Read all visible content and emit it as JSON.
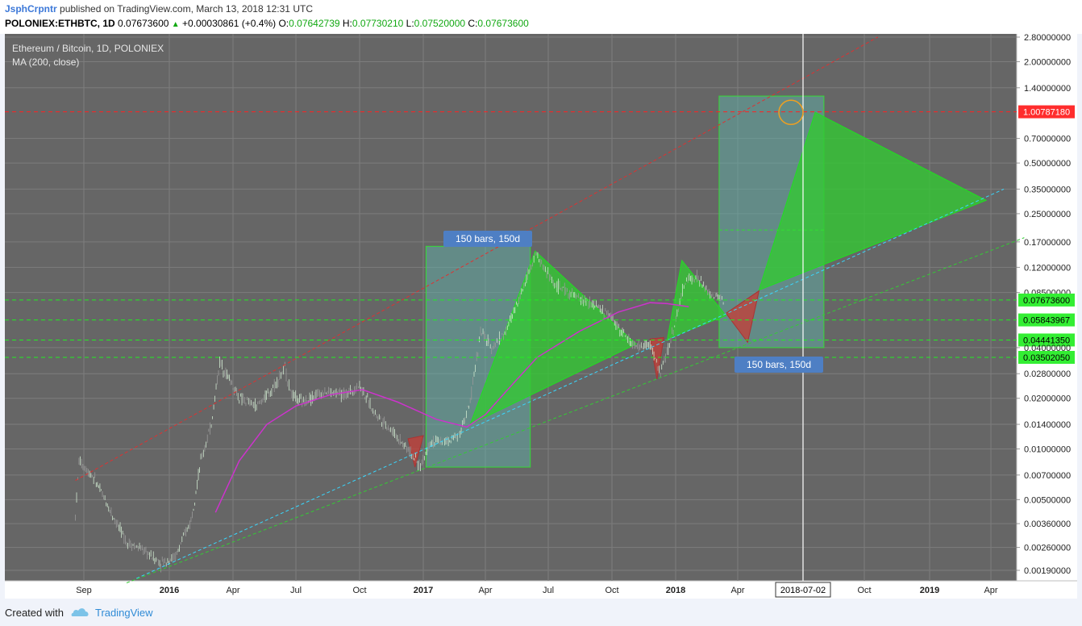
{
  "header": {
    "author": "JsphCrpntr",
    "published": "published on TradingView.com, March 13, 2018 12:31 UTC",
    "symbol": "POLONIEX:ETHBTC, 1D",
    "price": "0.07673600",
    "change": "+0.00030861 (+0.4%)",
    "open_label": "O:",
    "open": "0.07642739",
    "high_label": "H:",
    "high": "0.07730210",
    "low_label": "L:",
    "low": "0.07520000",
    "close_label": "C:",
    "close": "0.07673600"
  },
  "legend": {
    "title": "Ethereum / Bitcoin, 1D, POLONIEX",
    "indicator": "MA (200, close)"
  },
  "annotations": {
    "label_top": "150 bars, 150d",
    "label_bottom": "150 bars, 150d",
    "crosshair_date": "2018-07-02"
  },
  "footer": {
    "created_with": "Created with",
    "brand": "TradingView"
  },
  "colors": {
    "up": "#12a812",
    "chart_bg": "#666666",
    "ma_line": "#cc33cc",
    "red_level": "#ff2222",
    "green_level": "#22ee22",
    "label_bg": "#4e7fc4"
  },
  "chart_data": {
    "type": "candlestick",
    "scale": "log",
    "ylim": [
      0.0017,
      2.8
    ],
    "y_ticks": [
      "2.80000000",
      "2.00000000",
      "1.40000000",
      "1.00787180",
      "0.70000000",
      "0.50000000",
      "0.35000000",
      "0.25000000",
      "0.17000000",
      "0.12000000",
      "0.08500000",
      "0.07673600",
      "0.05843967",
      "0.04441350",
      "0.04000000",
      "0.03502050",
      "0.02800000",
      "0.02000000",
      "0.01400000",
      "0.01000000",
      "0.00700000",
      "0.00500000",
      "0.00360000",
      "0.00260000",
      "0.00190000"
    ],
    "x_ticks": [
      "Sep",
      "2016",
      "Apr",
      "Jul",
      "Oct",
      "2017",
      "Apr",
      "Jul",
      "Oct",
      "2018",
      "Apr",
      "2018-07-02",
      "Oct",
      "2019",
      "Apr"
    ],
    "levels": [
      {
        "value": 1.0078718,
        "color": "red",
        "label": "1.00787180"
      },
      {
        "value": 0.076736,
        "color": "green",
        "label": "0.07673600"
      },
      {
        "value": 0.05843967,
        "color": "green",
        "label": "0.05843967"
      },
      {
        "value": 0.0444135,
        "color": "green",
        "label": "0.04441350"
      },
      {
        "value": 0.0350205,
        "color": "green",
        "label": "0.03502050"
      }
    ],
    "price_path": [
      [
        "2015-08-20",
        0.004
      ],
      [
        "2015-08-25",
        0.0085
      ],
      [
        "2015-09-15",
        0.0068
      ],
      [
        "2015-10-10",
        0.0042
      ],
      [
        "2015-11-01",
        0.0028
      ],
      [
        "2015-11-25",
        0.0025
      ],
      [
        "2015-12-20",
        0.0021
      ],
      [
        "2016-01-10",
        0.0023
      ],
      [
        "2016-02-01",
        0.0038
      ],
      [
        "2016-02-15",
        0.0085
      ],
      [
        "2016-03-01",
        0.014
      ],
      [
        "2016-03-13",
        0.033
      ],
      [
        "2016-03-25",
        0.027
      ],
      [
        "2016-04-10",
        0.02
      ],
      [
        "2016-05-05",
        0.018
      ],
      [
        "2016-05-25",
        0.022
      ],
      [
        "2016-06-15",
        0.03
      ],
      [
        "2016-06-25",
        0.021
      ],
      [
        "2016-07-10",
        0.019
      ],
      [
        "2016-08-10",
        0.022
      ],
      [
        "2016-09-10",
        0.021
      ],
      [
        "2016-10-01",
        0.024
      ],
      [
        "2016-10-20",
        0.017
      ],
      [
        "2016-11-15",
        0.013
      ],
      [
        "2016-12-10",
        0.01
      ],
      [
        "2016-12-28",
        0.0078
      ],
      [
        "2017-01-10",
        0.011
      ],
      [
        "2017-02-10",
        0.0112
      ],
      [
        "2017-02-25",
        0.013
      ],
      [
        "2017-03-10",
        0.019
      ],
      [
        "2017-03-25",
        0.05
      ],
      [
        "2017-04-10",
        0.04
      ],
      [
        "2017-05-01",
        0.05
      ],
      [
        "2017-05-25",
        0.09
      ],
      [
        "2017-06-12",
        0.145
      ],
      [
        "2017-07-10",
        0.095
      ],
      [
        "2017-08-10",
        0.08
      ],
      [
        "2017-09-10",
        0.07
      ],
      [
        "2017-10-01",
        0.06
      ],
      [
        "2017-10-20",
        0.047
      ],
      [
        "2017-11-05",
        0.04
      ],
      [
        "2017-11-25",
        0.042
      ],
      [
        "2017-12-10",
        0.028
      ],
      [
        "2017-12-25",
        0.045
      ],
      [
        "2018-01-05",
        0.068
      ],
      [
        "2018-01-15",
        0.1
      ],
      [
        "2018-02-01",
        0.105
      ],
      [
        "2018-02-20",
        0.082
      ],
      [
        "2018-03-13",
        0.0767
      ]
    ],
    "series": [
      {
        "name": "MA (200, close)",
        "points": [
          [
            "2016-03-07",
            0.0042
          ],
          [
            "2016-04-10",
            0.0085
          ],
          [
            "2016-05-20",
            0.014
          ],
          [
            "2016-07-01",
            0.018
          ],
          [
            "2016-08-20",
            0.021
          ],
          [
            "2016-10-05",
            0.0225
          ],
          [
            "2016-11-25",
            0.019
          ],
          [
            "2017-01-20",
            0.015
          ],
          [
            "2017-03-05",
            0.0135
          ],
          [
            "2017-04-01",
            0.016
          ],
          [
            "2017-05-01",
            0.022
          ],
          [
            "2017-06-15",
            0.035
          ],
          [
            "2017-08-15",
            0.05
          ],
          [
            "2017-10-10",
            0.065
          ],
          [
            "2017-11-25",
            0.074
          ],
          [
            "2017-12-20",
            0.073
          ],
          [
            "2018-01-20",
            0.07
          ]
        ]
      }
    ],
    "trendlines": [
      {
        "color": "red",
        "from": [
          "2015-08-20",
          0.0065
        ],
        "to": [
          "2018-10-20",
          2.8
        ]
      },
      {
        "color": "cyan",
        "from": [
          "2015-11-15",
          0.0017
        ],
        "to": [
          "2019-04-20",
          0.35
        ]
      },
      {
        "color": "green",
        "from": [
          "2015-11-01",
          0.0016
        ],
        "to": [
          "2019-05-20",
          0.18
        ]
      }
    ],
    "regions": [
      {
        "type": "time_range",
        "from": "2017-01-05",
        "to": "2017-06-05",
        "label": "150 bars, 150d"
      },
      {
        "type": "time_range",
        "from": "2018-03-05",
        "to": "2018-08-02",
        "label": "150 bars, 150d"
      }
    ],
    "patterns": {
      "green": [
        [
          [
            "2017-03-10",
            0.014
          ],
          [
            "2017-06-12",
            0.15
          ],
          [
            "2017-11-05",
            0.042
          ]
        ],
        [
          [
            "2017-12-20",
            0.045
          ],
          [
            "2018-01-10",
            0.132
          ],
          [
            "2018-03-15",
            0.062
          ]
        ],
        [
          [
            "2018-05-01",
            0.088
          ],
          [
            "2018-07-20",
            1.0
          ],
          [
            "2019-03-25",
            0.3
          ]
        ]
      ],
      "red": [
        [
          [
            "2016-12-10",
            0.0115
          ],
          [
            "2016-12-20",
            0.0078
          ],
          [
            "2017-01-01",
            0.012
          ]
        ],
        [
          [
            "2017-11-25",
            0.045
          ],
          [
            "2017-12-05",
            0.026
          ],
          [
            "2017-12-15",
            0.046
          ]
        ],
        [
          [
            "2018-03-15",
            0.064
          ],
          [
            "2018-04-15",
            0.043
          ],
          [
            "2018-05-01",
            0.087
          ]
        ]
      ]
    },
    "markers": [
      {
        "type": "circle",
        "at": [
          "2018-06-15",
          1.0
        ]
      }
    ]
  }
}
